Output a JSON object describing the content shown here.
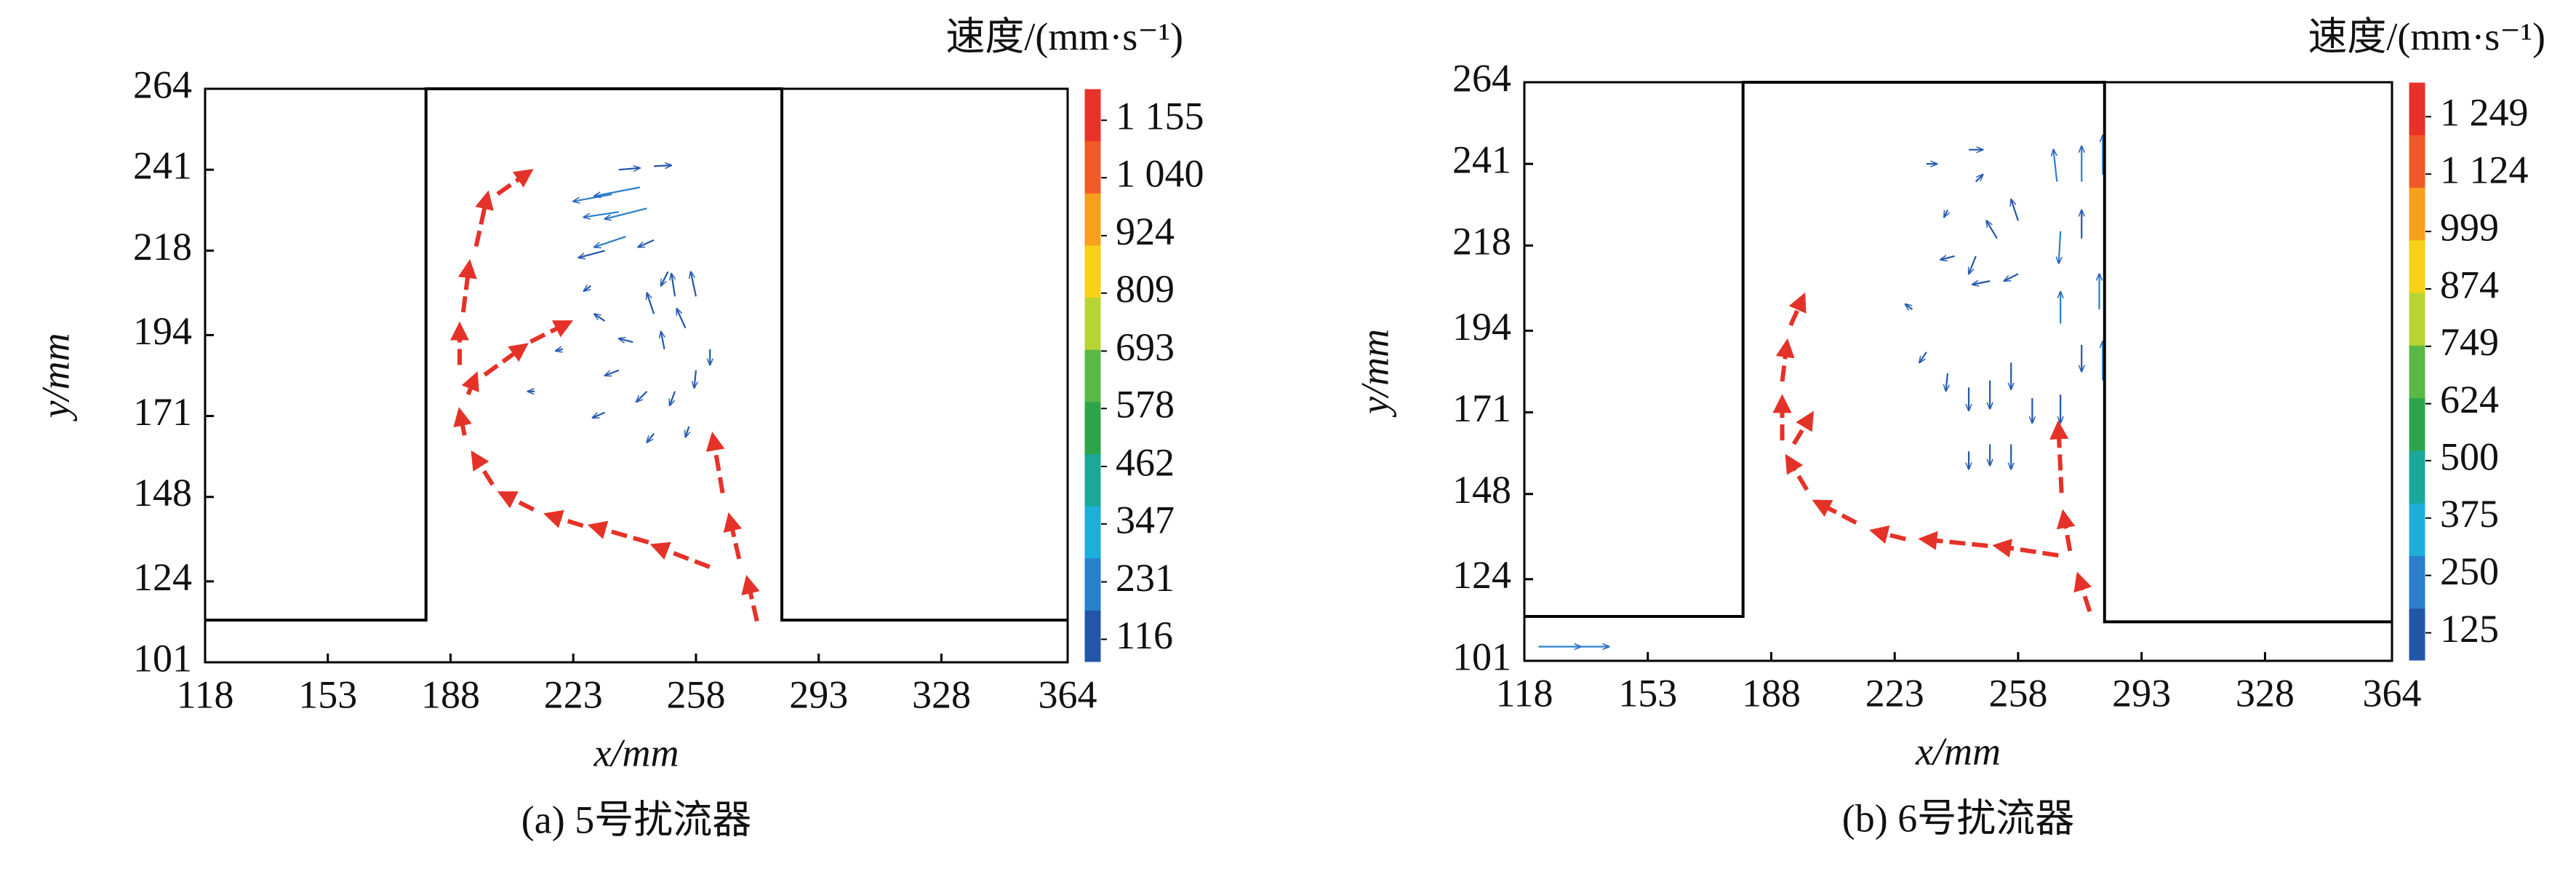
{
  "chart_data": [
    {
      "type": "quiver",
      "caption": "(a) 5号扰流器",
      "x_label": "x/mm",
      "y_label": "y/mm",
      "colorbar_label": "速度/(mm·s⁻¹)",
      "xlim": [
        118,
        364
      ],
      "ylim": [
        101,
        264
      ],
      "xticks": [
        118,
        153,
        188,
        223,
        258,
        293,
        328,
        364
      ],
      "yticks": [
        101,
        124,
        148,
        171,
        194,
        218,
        241,
        264
      ],
      "clim": [
        70,
        1218
      ],
      "cticks": [
        116,
        231,
        347,
        462,
        578,
        693,
        809,
        924,
        {
          "value": 1040,
          "label": "1 040"
        },
        {
          "value": 1155,
          "label": "1 155"
        }
      ],
      "colormap": [
        "#2356a8",
        "#2a7fcc",
        "#1ab0d8",
        "#1aa89a",
        "#2ea44a",
        "#5ab848",
        "#b8d432",
        "#f7d117",
        "#f6a01b",
        "#f05a28",
        "#e8312b"
      ],
      "boundary": {
        "x": [
          118,
          181,
          181,
          282.5,
          282.5,
          364
        ],
        "y": [
          113,
          113,
          264,
          264,
          113,
          113
        ]
      },
      "vectors": {
        "x": [
          236,
          246,
          234,
          242,
          236,
          244,
          238,
          232,
          246,
          250,
          252,
          246,
          258,
          255,
          249,
          240,
          232,
          236,
          244,
          252,
          258,
          262,
          232,
          246,
          256,
          228,
          212,
          220
        ],
        "y": [
          241,
          242,
          234,
          236,
          229,
          230,
          222,
          218,
          221,
          212,
          205,
          200,
          205,
          196,
          190,
          192,
          198,
          184,
          178,
          178,
          184,
          190,
          172,
          166,
          168,
          208,
          178,
          190
        ],
        "u": [
          120,
          100,
          -220,
          -260,
          -200,
          -240,
          -180,
          -150,
          -90,
          -40,
          -20,
          -40,
          -30,
          -50,
          -20,
          -80,
          -60,
          -80,
          -60,
          -30,
          -10,
          0,
          -70,
          -40,
          -20,
          -40,
          -40,
          -40
        ],
        "v": [
          10,
          5,
          -40,
          -50,
          -30,
          -60,
          -60,
          -40,
          -40,
          -80,
          130,
          120,
          140,
          110,
          100,
          20,
          40,
          -30,
          -60,
          -80,
          -100,
          -90,
          -30,
          -50,
          -60,
          -30,
          0,
          -10
        ]
      },
      "flow_color": "#e53228",
      "flow_arrows": [
        {
          "x": [
            275.4,
            272.6
          ],
          "y": [
            112.7,
            124.8
          ]
        },
        {
          "x": [
            270.3,
            267.5
          ],
          "y": [
            130.4,
            142.6
          ]
        },
        {
          "x": [
            265.6,
            262.8
          ],
          "y": [
            149.1,
            165.5
          ]
        },
        {
          "x": [
            261.9,
            245.9
          ],
          "y": [
            128.1,
            134.2
          ]
        },
        {
          "x": [
            244.5,
            228.1
          ],
          "y": [
            135.1,
            139.8
          ]
        },
        {
          "x": [
            225.8,
            215.5
          ],
          "y": [
            139.8,
            143.0
          ]
        },
        {
          "x": [
            211.7,
            202.3
          ],
          "y": [
            144.4,
            149.1
          ]
        },
        {
          "x": [
            200.0,
            194.4
          ],
          "y": [
            151.5,
            160.3
          ]
        },
        {
          "x": [
            192.0,
            190.6
          ],
          "y": [
            165.5,
            172.5
          ]
        },
        {
          "x": [
            193.0,
            195.3
          ],
          "y": [
            177.1,
            182.7
          ]
        },
        {
          "x": [
            197.7,
            209.4
          ],
          "y": [
            182.7,
            191.1
          ]
        },
        {
          "x": [
            210.8,
            222.0
          ],
          "y": [
            192.1,
            197.7
          ]
        },
        {
          "x": [
            190.6,
            190.6
          ],
          "y": [
            185.5,
            196.8
          ]
        },
        {
          "x": [
            191.6,
            193.4
          ],
          "y": [
            200.5,
            214.5
          ]
        },
        {
          "x": [
            195.3,
            198.6
          ],
          "y": [
            219.2,
            234.1
          ]
        },
        {
          "x": [
            201.4,
            210.8
          ],
          "y": [
            234.1,
            240.6
          ]
        }
      ]
    },
    {
      "type": "quiver",
      "caption": "(b) 6号扰流器",
      "x_label": "x/mm",
      "y_label": "y/mm",
      "colorbar_label": "速度/(mm·s⁻¹)",
      "xlim": [
        118,
        364
      ],
      "ylim": [
        101,
        264
      ],
      "xticks": [
        118,
        153,
        188,
        223,
        258,
        293,
        328,
        364
      ],
      "yticks": [
        101,
        124,
        148,
        171,
        194,
        218,
        241,
        264
      ],
      "clim": [
        64,
        1324
      ],
      "cticks": [
        125,
        250,
        375,
        500,
        624,
        749,
        874,
        999,
        {
          "value": 1124,
          "label": "1 124"
        },
        {
          "value": 1249,
          "label": "1 249"
        }
      ],
      "colormap": [
        "#2356a8",
        "#2a7fcc",
        "#1ab0d8",
        "#1aa89a",
        "#2ea44a",
        "#5ab848",
        "#b8d432",
        "#f7d117",
        "#f6a01b",
        "#f05a28",
        "#e8312b"
      ],
      "boundary": {
        "x": [
          118,
          180,
          180,
          282.5,
          282.5,
          364
        ],
        "y": [
          113.5,
          113.5,
          264,
          264,
          112,
          112
        ]
      },
      "vectors": {
        "x": [
          269,
          276,
          282,
          270,
          276,
          281,
          270,
          276,
          282,
          270,
          258,
          252,
          246,
          258,
          250,
          240,
          256,
          250,
          244,
          262,
          238,
          256,
          250,
          244,
          232,
          228,
          238,
          246,
          232,
          244,
          122,
          132
        ],
        "y": [
          236,
          236,
          238,
          222,
          220,
          200,
          196,
          190,
          180,
          176,
          225,
          220,
          215,
          210,
          208,
          215,
          185,
          180,
          178,
          175,
          182,
          162,
          162,
          160,
          188,
          200,
          228,
          236,
          241,
          245,
          105,
          105
        ],
        "u": [
          -20,
          0,
          0,
          -10,
          0,
          0,
          0,
          0,
          0,
          0,
          -40,
          -60,
          -40,
          -80,
          -100,
          -80,
          0,
          0,
          0,
          0,
          -10,
          0,
          0,
          0,
          -40,
          -40,
          -20,
          40,
          60,
          80,
          240,
          200
        ],
        "v": [
          180,
          200,
          220,
          -180,
          160,
          200,
          180,
          -150,
          220,
          -160,
          120,
          100,
          -100,
          -40,
          -20,
          -20,
          -150,
          -160,
          -130,
          -140,
          -100,
          -140,
          -120,
          -100,
          -60,
          30,
          -40,
          40,
          0,
          0,
          0,
          0
        ]
      },
      "flow_color": "#e53228",
      "flow_arrows": [
        {
          "x": [
            278.3,
            275.0
          ],
          "y": [
            114.9,
            125.1
          ]
        },
        {
          "x": [
            272.7,
            270.8
          ],
          "y": [
            132.0,
            142.7
          ]
        },
        {
          "x": [
            270.3,
            269.4
          ],
          "y": [
            148.3,
            167.7
          ]
        },
        {
          "x": [
            269.4,
            251.7
          ],
          "y": [
            130.7,
            133.4
          ]
        },
        {
          "x": [
            249.4,
            230.7
          ],
          "y": [
            133.4,
            135.3
          ]
        },
        {
          "x": [
            226.1,
            216.8
          ],
          "y": [
            135.3,
            137.6
          ]
        },
        {
          "x": [
            212.1,
            200.5
          ],
          "y": [
            139.9,
            145.9
          ]
        },
        {
          "x": [
            198.1,
            192.5
          ],
          "y": [
            149.2,
            158.4
          ]
        },
        {
          "x": [
            191.1,
            191.1
          ],
          "y": [
            163.1,
            175.1
          ]
        },
        {
          "x": [
            194.4,
            199.5
          ],
          "y": [
            162.1,
            170.5
          ]
        },
        {
          "x": [
            191.1,
            192.5
          ],
          "y": [
            179.7,
            190.8
          ]
        },
        {
          "x": [
            193.5,
            197.2
          ],
          "y": [
            195.5,
            203.8
          ]
        }
      ]
    }
  ]
}
